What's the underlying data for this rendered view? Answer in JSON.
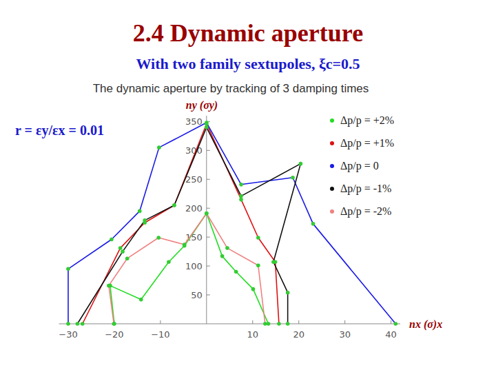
{
  "chart_data": {
    "type": "line",
    "title": "2.4 Dynamic aperture",
    "subtitle": "With two family sextupoles, ξc=0.5",
    "annotations": [
      "The dynamic aperture by tracking of 3 damping times",
      "r = εy/εx = 0.01"
    ],
    "x_label": "nx (σ)x",
    "y_label": "ny (σy)",
    "xlim": [
      -32,
      42
    ],
    "ylim": [
      0,
      360
    ],
    "xticks": [
      {
        "value": -30,
        "label": "−30"
      },
      {
        "value": -20,
        "label": "−20"
      },
      {
        "value": -10,
        "label": "−10"
      },
      10,
      20,
      30,
      40
    ],
    "yticks": [
      50,
      100,
      150,
      200,
      250,
      300,
      350
    ],
    "marker": "circle",
    "legend": "top-right",
    "series": [
      {
        "name": "Δp/p = +2%",
        "color": "#22dd22",
        "x": [
          -20,
          -20.9,
          -14.2,
          -8.2,
          -4.8,
          0,
          3.4,
          6.4,
          10.1,
          13.4
        ],
        "values": [
          0,
          66,
          42,
          107,
          135,
          191,
          117,
          90,
          60,
          0
        ]
      },
      {
        "name": "Δp/p = +1%",
        "color": "#dd1111",
        "x": [
          -26.9,
          -18.7,
          -13.4,
          -7,
          0,
          7.5,
          11.2,
          14.9,
          15.7
        ],
        "values": [
          0,
          131,
          175,
          205,
          346,
          215,
          149,
          107,
          0
        ]
      },
      {
        "name": "Δp/p =  0",
        "color": "#1a1ae6",
        "x": [
          -30,
          -30,
          -20.6,
          -14.5,
          -10.3,
          0,
          7.5,
          18.7,
          23.1,
          41
        ],
        "values": [
          0,
          95,
          146,
          195,
          305,
          348,
          241,
          253,
          173,
          0
        ]
      },
      {
        "name": "Δp/p = -1%",
        "color": "#111111",
        "x": [
          -28,
          -18.2,
          -13.4,
          -7,
          0,
          7.5,
          20.4,
          14.5,
          17.6,
          17.6
        ],
        "values": [
          0,
          125,
          179,
          205,
          340,
          221,
          277,
          107,
          54,
          0
        ]
      },
      {
        "name": "Δp/p = -2%",
        "color": "#f08080",
        "x": [
          -20.1,
          -21.2,
          -17.2,
          -10.4,
          -4.8,
          0,
          4.5,
          11.2,
          12.7
        ],
        "values": [
          0,
          66,
          113,
          149,
          137,
          191,
          131,
          101,
          0
        ]
      }
    ]
  }
}
